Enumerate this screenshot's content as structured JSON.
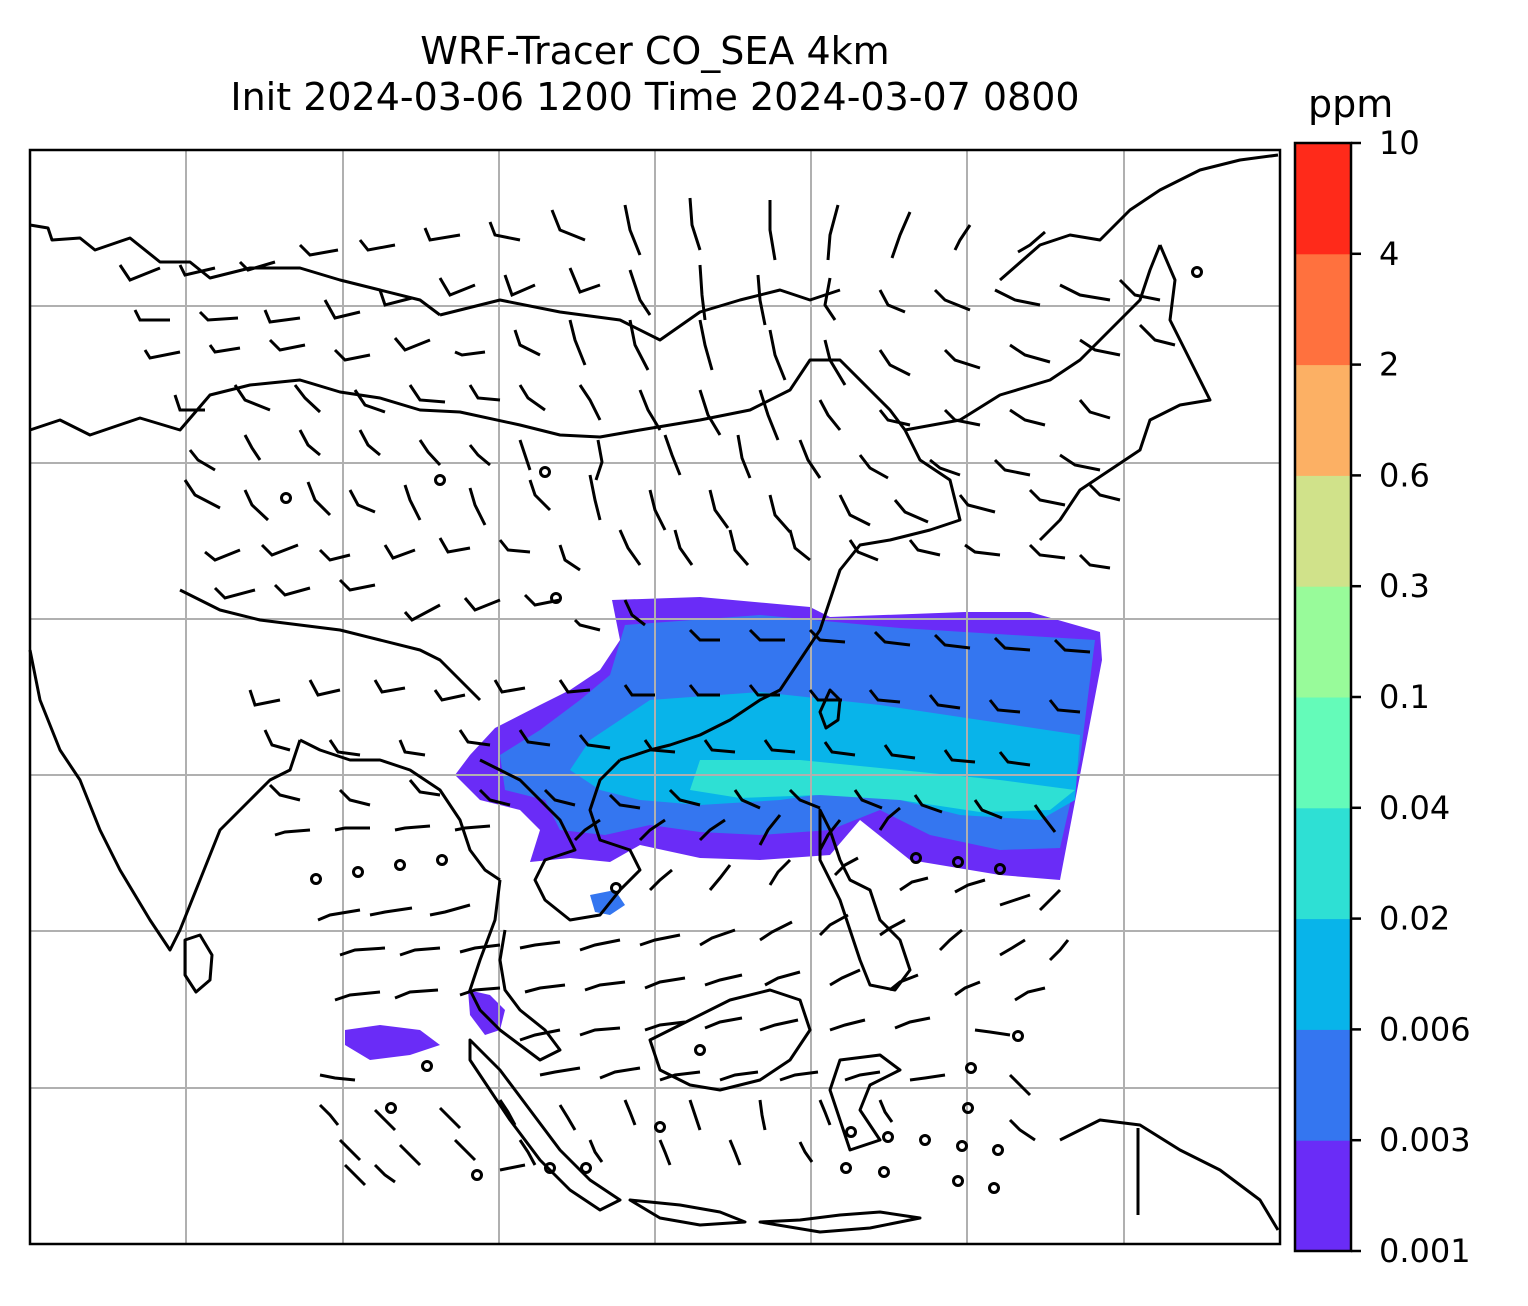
{
  "title": {
    "line1": "WRF-Tracer CO_SEA 4km",
    "line2": "Init 2024-03-06 1200 Time 2024-03-07 0800"
  },
  "colorbar": {
    "unit": "ppm",
    "levels": [
      "0.001",
      "0.003",
      "0.006",
      "0.02",
      "0.04",
      "0.1",
      "0.3",
      "0.6",
      "2",
      "4",
      "10"
    ],
    "colors": [
      "#6a2cf7",
      "#3476f0",
      "#08b4ea",
      "#2ee0d4",
      "#64fbb9",
      "#98fb9a",
      "#d0e28a",
      "#fcb064",
      "#ff713e",
      "#ff2a1a"
    ]
  },
  "map": {
    "gridlines": true,
    "field": "CO tracer concentration (shaded) with wind barbs"
  }
}
